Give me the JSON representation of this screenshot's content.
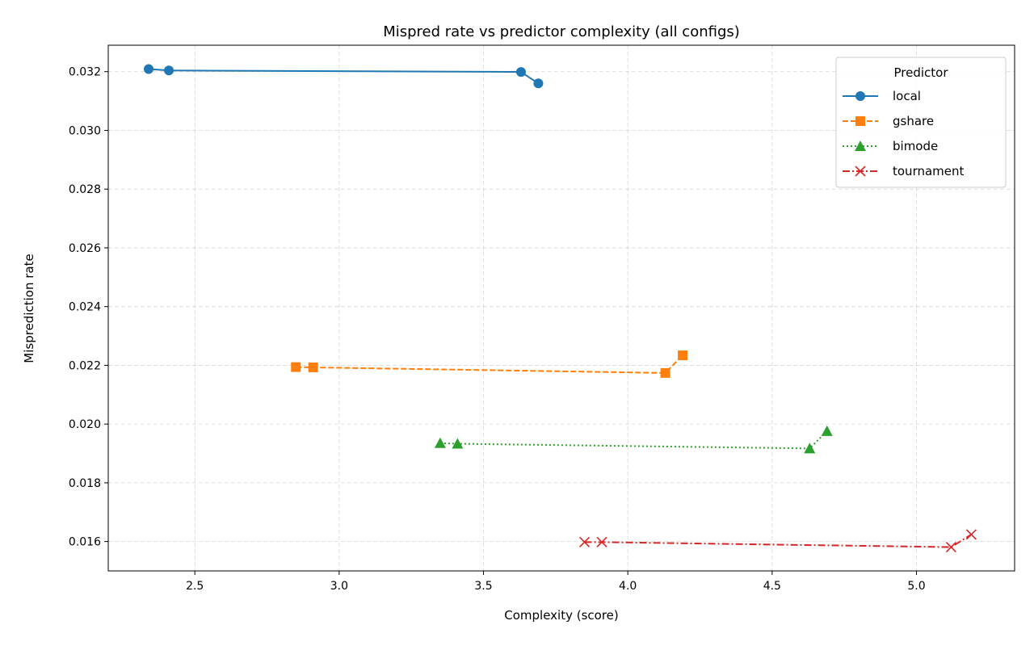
{
  "chart_data": {
    "type": "line",
    "title": "Mispred rate vs predictor complexity (all configs)",
    "xlabel": "Complexity (score)",
    "ylabel": "Misprediction rate",
    "xlim": [
      2.2,
      5.34
    ],
    "ylim": [
      0.015,
      0.0329
    ],
    "xticks": [
      2.5,
      3.0,
      3.5,
      4.0,
      4.5,
      5.0
    ],
    "xtick_labels": [
      "2.5",
      "3.0",
      "3.5",
      "4.0",
      "4.5",
      "5.0"
    ],
    "yticks": [
      0.016,
      0.018,
      0.02,
      0.022,
      0.024,
      0.026,
      0.028,
      0.03,
      0.032
    ],
    "ytick_labels": [
      "0.016",
      "0.018",
      "0.020",
      "0.022",
      "0.024",
      "0.026",
      "0.028",
      "0.030",
      "0.032"
    ],
    "grid": true,
    "legend": {
      "title": "Predictor",
      "placement": "top-right"
    },
    "series": [
      {
        "name": "local",
        "color": "#1f77b4",
        "marker": "circle",
        "linestyle": "solid",
        "x": [
          2.34,
          2.41,
          3.63,
          3.69
        ],
        "y": [
          0.03209,
          0.03204,
          0.03199,
          0.0316
        ]
      },
      {
        "name": "gshare",
        "color": "#ff7f0e",
        "marker": "square",
        "linestyle": "dashed",
        "x": [
          2.85,
          2.91,
          4.13,
          4.19
        ],
        "y": [
          0.02194,
          0.02193,
          0.02174,
          0.02234
        ]
      },
      {
        "name": "bimode",
        "color": "#2ca02c",
        "marker": "triangle",
        "linestyle": "dotted",
        "x": [
          3.35,
          3.41,
          4.63,
          4.69
        ],
        "y": [
          0.01935,
          0.01933,
          0.01917,
          0.01976
        ]
      },
      {
        "name": "tournament",
        "color": "#d62728",
        "marker": "x",
        "linestyle": "dashdot",
        "x": [
          3.85,
          3.91,
          5.12,
          5.19
        ],
        "y": [
          0.01598,
          0.01598,
          0.01581,
          0.01624
        ]
      }
    ]
  }
}
